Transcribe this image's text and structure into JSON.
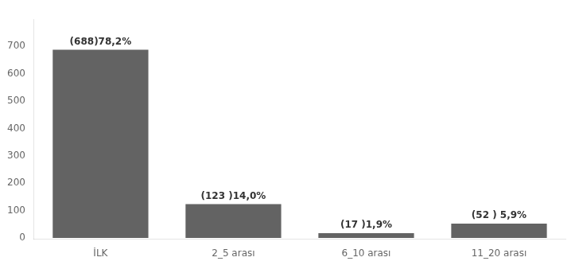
{
  "chart_data": {
    "type": "bar",
    "categories": [
      "İLK",
      "2_5 arası",
      "6_10 arası",
      "11_20 arası"
    ],
    "values": [
      688,
      123,
      17,
      52
    ],
    "data_labels": true,
    "value_labels": [
      "(688)78,2%",
      "(123 )14,0%",
      "(17 )1,9%",
      "(52 ) 5,9%"
    ],
    "color": "#636363",
    "ylim": [
      -5,
      800
    ],
    "yticks": [
      0,
      100,
      200,
      300,
      400,
      500,
      600,
      700
    ],
    "grid": false
  }
}
